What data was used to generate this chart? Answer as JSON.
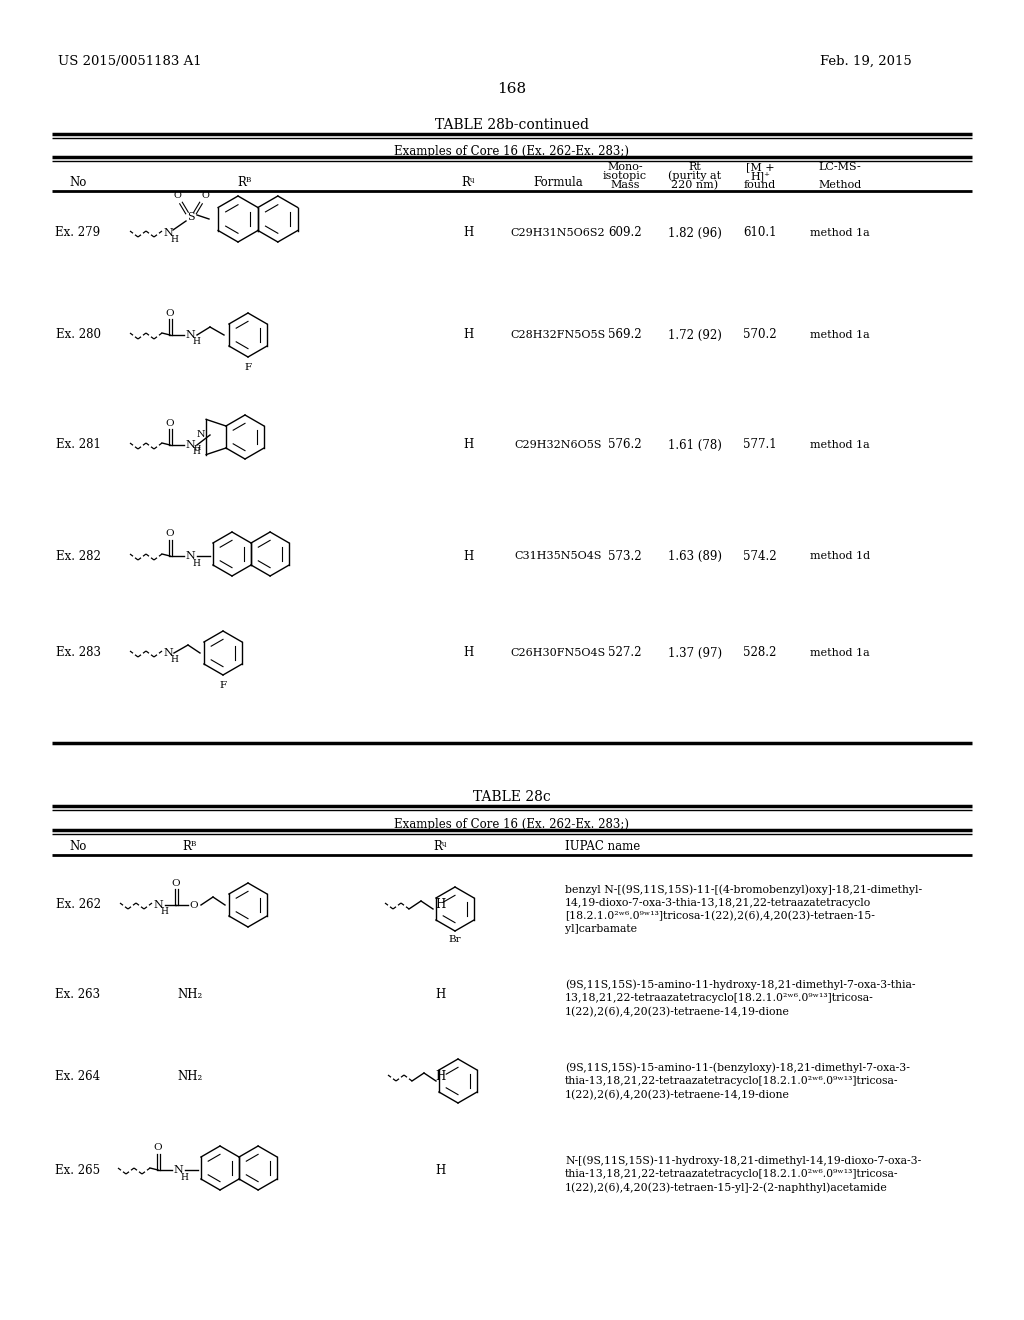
{
  "page_number": "168",
  "patent_number": "US 2015/0051183 A1",
  "patent_date": "Feb. 19, 2015",
  "table1_title": "TABLE 28b-continued",
  "table1_subtitle": "Examples of Core 16 (Ex. 262-Ex. 283;)",
  "table2_title": "TABLE 28c",
  "table2_subtitle": "Examples of Core 16 (Ex. 262-Ex. 283;)",
  "table1_rows": [
    [
      "Ex. 279",
      "H",
      "C29H31N5O6S2",
      "609.2",
      "1.82 (96)",
      "610.1",
      "method 1a"
    ],
    [
      "Ex. 280",
      "H",
      "C28H32FN5O5S",
      "569.2",
      "1.72 (92)",
      "570.2",
      "method 1a"
    ],
    [
      "Ex. 281",
      "H",
      "C29H32N6O5S",
      "576.2",
      "1.61 (78)",
      "577.1",
      "method 1a"
    ],
    [
      "Ex. 282",
      "H",
      "C31H35N5O4S",
      "573.2",
      "1.63 (89)",
      "574.2",
      "method 1d"
    ],
    [
      "Ex. 283",
      "H",
      "C26H30FN5O4S",
      "527.2",
      "1.37 (97)",
      "528.2",
      "method 1a"
    ]
  ],
  "table2_rows": [
    [
      "Ex. 262",
      "",
      "H",
      "benzyl N-[(9S,11S,15S)-11-[(4-bromobenzyl)oxy]-18,21-dimethyl-\n14,19-dioxo-7-oxa-3-thia-13,18,21,22-tetraazatetracyclo\n[18.2.1.0²ʷ⁶.0⁹ʷ¹³]tricosa-1(22),2(6),4,20(23)-tetraen-15-\nyl]carbamate"
    ],
    [
      "Ex. 263",
      "NH₂",
      "H",
      "(9S,11S,15S)-15-amino-11-hydroxy-18,21-dimethyl-7-oxa-3-thia-\n13,18,21,22-tetraazatetracyclo[18.2.1.0²ʷ⁶.0⁹ʷ¹³]tricosa-\n1(22),2(6),4,20(23)-tetraene-14,19-dione"
    ],
    [
      "Ex. 264",
      "NH₂",
      "H",
      "(9S,11S,15S)-15-amino-11-(benzyloxy)-18,21-dimethyl-7-oxa-3-\nthia-13,18,21,22-tetraazatetracyclo[18.2.1.0²ʷ⁶.0⁹ʷ¹³]tricosa-\n1(22),2(6),4,20(23)-tetraene-14,19-dione"
    ],
    [
      "Ex. 265",
      "",
      "H",
      "N-[(9S,11S,15S)-11-hydroxy-18,21-dimethyl-14,19-dioxo-7-oxa-3-\nthia-13,18,21,22-tetraazatetracyclo[18.2.1.0²ʷ⁶.0⁹ʷ¹³]tricosa-\n1(22),2(6),4,20(23)-tetraen-15-yl]-2-(2-naphthyl)acetamide"
    ]
  ],
  "bg_color": "#ffffff"
}
